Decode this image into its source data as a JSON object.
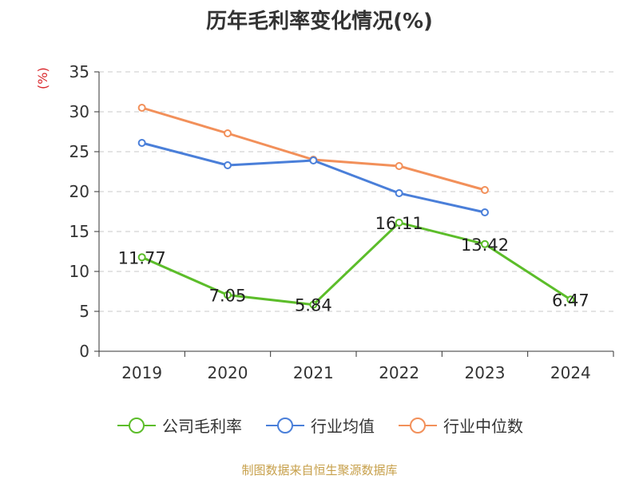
{
  "chart_data": {
    "type": "line",
    "title": "历年毛利率变化情况(%)",
    "ylabel": "(%)",
    "xlabel": "",
    "categories": [
      "2019",
      "2020",
      "2021",
      "2022",
      "2023",
      "2024"
    ],
    "ylim": [
      0,
      35
    ],
    "yticks": [
      0,
      5,
      10,
      15,
      20,
      25,
      30,
      35
    ],
    "grid": true,
    "legend_position": "bottom",
    "series": [
      {
        "name": "公司毛利率",
        "color": "#5cbd2a",
        "values": [
          11.77,
          7.05,
          5.84,
          16.11,
          13.42,
          6.47
        ],
        "labels": [
          "11.77",
          "7.05",
          "5.84",
          "16.11",
          "13.42",
          "6.47"
        ]
      },
      {
        "name": "行业均值",
        "color": "#4a7fd9",
        "values": [
          26.1,
          23.3,
          23.9,
          19.8,
          17.4,
          null
        ]
      },
      {
        "name": "行业中位数",
        "color": "#f2905a",
        "values": [
          30.5,
          27.3,
          24.0,
          23.2,
          20.2,
          null
        ]
      }
    ]
  },
  "footer": {
    "source": "制图数据来自恒生聚源数据库"
  }
}
